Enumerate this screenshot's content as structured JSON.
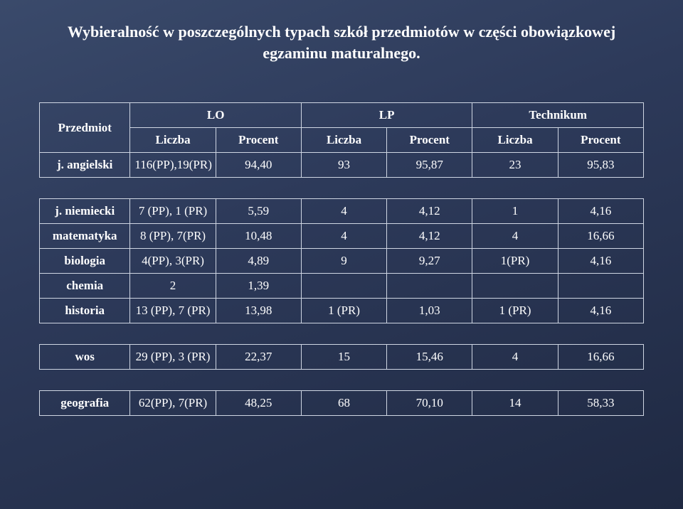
{
  "title_line1": "Wybieralność w poszczególnych typach szkół przedmiotów w części obowiązkowej",
  "title_line2": "egzaminu maturalnego.",
  "headers": {
    "subject": "Przedmiot",
    "groups": [
      "LO",
      "LP",
      "Technikum"
    ],
    "sub": [
      "Liczba",
      "Procent"
    ]
  },
  "rows1": [
    {
      "label": "j. angielski",
      "cells": [
        "116(PP),19(PR)",
        "94,40",
        "93",
        "95,87",
        "23",
        "95,83"
      ]
    }
  ],
  "rows2": [
    {
      "label": "j. niemiecki",
      "cells": [
        "7 (PP),  1 (PR)",
        "5,59",
        "4",
        "4,12",
        "1",
        "4,16"
      ]
    },
    {
      "label": "matematyka",
      "cells": [
        "8 (PP), 7(PR)",
        "10,48",
        "4",
        "4,12",
        "4",
        "16,66"
      ]
    },
    {
      "label": "biologia",
      "cells": [
        "4(PP),  3(PR)",
        "4,89",
        "9",
        "9,27",
        "1(PR)",
        "4,16"
      ]
    },
    {
      "label": "chemia",
      "cells": [
        "2",
        "1,39",
        "",
        "",
        "",
        ""
      ]
    },
    {
      "label": "historia",
      "cells": [
        "13 (PP), 7 (PR)",
        "13,98",
        "1 (PR)",
        "1,03",
        "1 (PR)",
        "4,16"
      ]
    }
  ],
  "rows3": [
    {
      "label": "wos",
      "cells": [
        "29 (PP), 3 (PR)",
        "22,37",
        "15",
        "15,46",
        "4",
        "16,66"
      ]
    }
  ],
  "rows4": [
    {
      "label": "geografia",
      "cells": [
        "62(PP), 7(PR)",
        "48,25",
        "68",
        "70,10",
        "14",
        "58,33"
      ]
    }
  ]
}
